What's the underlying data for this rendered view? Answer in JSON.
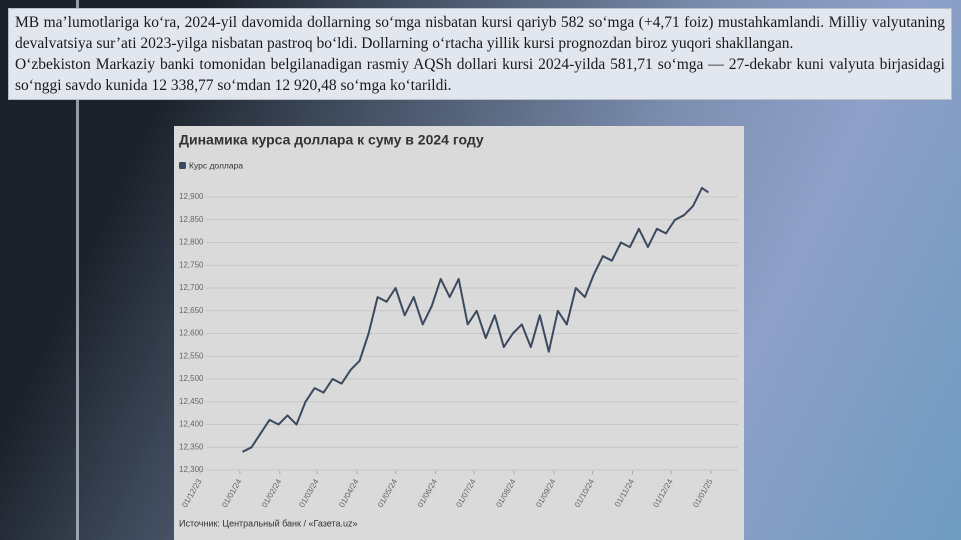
{
  "text": {
    "paragraphs": [
      "MB ma’lumotlariga ko‘ra, 2024-yil davomida dollarning so‘mga nisbatan kursi qariyb 582 so‘mga (+4,71 foiz) mustahkamlandi. Milliy valyutaning devalvatsiya sur’ati 2023-yilga nisbatan pastroq bo‘ldi. Dollarning o‘rtacha yillik kursi prognozdan biroz yuqori shakllangan.",
      "O‘zbekiston Markaziy banki tomonidan belgilanadigan rasmiy AQSh dollari kursi 2024-yilda 581,71 so‘mga — 27-dekabr kuni valyuta birjasidagi so‘nggi savdo kunida 12 338,77 so‘mdan 12 920,48 so‘mga ko‘tarildi."
    ]
  },
  "chart_data": {
    "type": "line",
    "title": "Динамика курса доллара к суму в 2024 году",
    "source": "Источник: Центральный банк / «Газета.uz»",
    "series": [
      {
        "name": "Курс доллара",
        "color": "#3b4a5e",
        "x": [
          "2024-01-03",
          "2024-01-10",
          "2024-01-17",
          "2024-01-24",
          "2024-01-31",
          "2024-02-07",
          "2024-02-14",
          "2024-02-21",
          "2024-02-28",
          "2024-03-06",
          "2024-03-13",
          "2024-03-20",
          "2024-03-27",
          "2024-04-03",
          "2024-04-10",
          "2024-04-17",
          "2024-04-24",
          "2024-05-01",
          "2024-05-08",
          "2024-05-15",
          "2024-05-22",
          "2024-05-29",
          "2024-06-05",
          "2024-06-12",
          "2024-06-19",
          "2024-06-26",
          "2024-07-03",
          "2024-07-10",
          "2024-07-17",
          "2024-07-24",
          "2024-07-31",
          "2024-08-07",
          "2024-08-14",
          "2024-08-21",
          "2024-08-28",
          "2024-09-04",
          "2024-09-11",
          "2024-09-18",
          "2024-09-25",
          "2024-10-02",
          "2024-10-09",
          "2024-10-16",
          "2024-10-23",
          "2024-10-30",
          "2024-11-06",
          "2024-11-13",
          "2024-11-20",
          "2024-11-27",
          "2024-12-04",
          "2024-12-11",
          "2024-12-18",
          "2024-12-25",
          "2024-12-30"
        ],
        "values": [
          12340,
          12350,
          12380,
          12410,
          12400,
          12420,
          12400,
          12450,
          12480,
          12470,
          12500,
          12490,
          12520,
          12540,
          12600,
          12680,
          12670,
          12700,
          12640,
          12680,
          12620,
          12660,
          12720,
          12680,
          12720,
          12620,
          12650,
          12590,
          12640,
          12570,
          12600,
          12620,
          12570,
          12640,
          12560,
          12650,
          12620,
          12700,
          12680,
          12730,
          12770,
          12760,
          12800,
          12790,
          12830,
          12790,
          12830,
          12820,
          12850,
          12860,
          12880,
          12920,
          12910
        ]
      }
    ],
    "xlim": [
      "2023-12-01",
      "2025-01-01"
    ],
    "xticks": [
      {
        "value": "2023-12-01",
        "label": "01/12/23"
      },
      {
        "value": "2024-01-01",
        "label": "01/01/24"
      },
      {
        "value": "2024-02-01",
        "label": "01/02/24"
      },
      {
        "value": "2024-03-01",
        "label": "01/03/24"
      },
      {
        "value": "2024-04-01",
        "label": "01/04/24"
      },
      {
        "value": "2024-05-01",
        "label": "01/05/24"
      },
      {
        "value": "2024-06-01",
        "label": "01/06/24"
      },
      {
        "value": "2024-07-01",
        "label": "01/07/24"
      },
      {
        "value": "2024-08-01",
        "label": "01/08/24"
      },
      {
        "value": "2024-09-01",
        "label": "01/09/24"
      },
      {
        "value": "2024-10-01",
        "label": "01/10/24"
      },
      {
        "value": "2024-11-01",
        "label": "01/11/24"
      },
      {
        "value": "2024-12-01",
        "label": "01/12/24"
      },
      {
        "value": "2025-01-01",
        "label": "01/01/25"
      }
    ],
    "ylim": [
      12300,
      12900
    ],
    "yticks": [
      {
        "value": 12300,
        "label": "12,300"
      },
      {
        "value": 12350,
        "label": "12,350"
      },
      {
        "value": 12400,
        "label": "12,400"
      },
      {
        "value": 12450,
        "label": "12,450"
      },
      {
        "value": 12500,
        "label": "12,500"
      },
      {
        "value": 12550,
        "label": "12,550"
      },
      {
        "value": 12600,
        "label": "12,600"
      },
      {
        "value": 12650,
        "label": "12,650"
      },
      {
        "value": 12700,
        "label": "12,700"
      },
      {
        "value": 12750,
        "label": "12,750"
      },
      {
        "value": 12800,
        "label": "12,800"
      },
      {
        "value": 12850,
        "label": "12,850"
      },
      {
        "value": 12900,
        "label": "12,900"
      }
    ],
    "grid": true
  }
}
